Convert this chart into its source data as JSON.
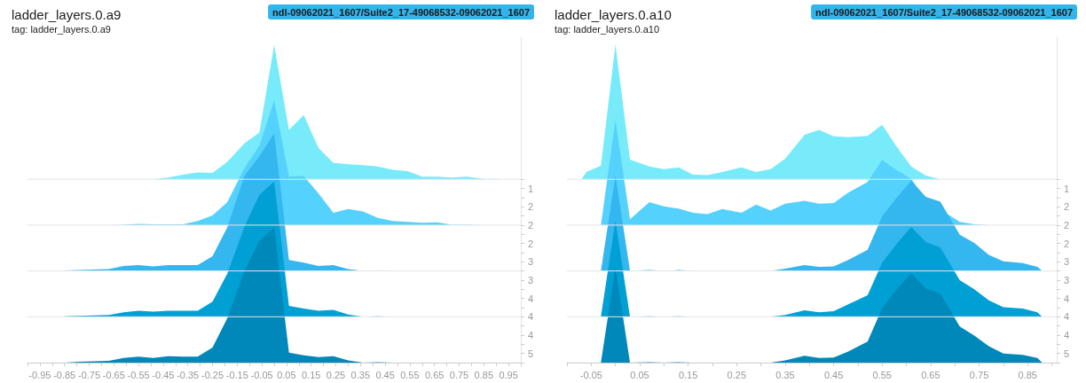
{
  "chart_data": [
    {
      "type": "area",
      "title": "ladder_layers.0.a9",
      "subtitle": "tag: ladder_layers.0.a9",
      "annotations": [
        "ndl-09062021_1607/Suite2_17-49068532-09062021_1607"
      ],
      "x": [
        -0.85,
        -0.79,
        -0.73,
        -0.67,
        -0.61,
        -0.55,
        -0.49,
        -0.43,
        -0.37,
        -0.31,
        -0.25,
        -0.19,
        -0.12,
        -0.06,
        0.0,
        0.06,
        0.12,
        0.18,
        0.24,
        0.3,
        0.36,
        0.42,
        0.48,
        0.54,
        0.6,
        0.66,
        0.72,
        0.78,
        0.85,
        0.91
      ],
      "xlim": [
        -1.0,
        1.0
      ],
      "xticks": [
        {
          "value": -1.0,
          "label": null
        },
        -0.95,
        {
          "value": -0.9,
          "label": null
        },
        -0.85,
        {
          "value": -0.8,
          "label": null
        },
        -0.75,
        {
          "value": -0.7,
          "label": null
        },
        -0.65,
        {
          "value": -0.6,
          "label": null
        },
        -0.55,
        {
          "value": -0.5,
          "label": null
        },
        -0.45,
        {
          "value": -0.4,
          "label": null
        },
        -0.35,
        {
          "value": -0.3,
          "label": null
        },
        -0.25,
        {
          "value": -0.2,
          "label": null
        },
        -0.15,
        {
          "value": -0.1,
          "label": null
        },
        -0.05,
        {
          "value": 0.0,
          "label": null
        },
        0.05,
        {
          "value": 0.1,
          "label": null
        },
        0.15,
        {
          "value": 0.2,
          "label": null
        },
        0.25,
        {
          "value": 0.3,
          "label": null
        },
        0.35,
        {
          "value": 0.4,
          "label": null
        },
        0.45,
        {
          "value": 0.5,
          "label": null
        },
        0.55,
        {
          "value": 0.6,
          "label": null
        },
        0.65,
        {
          "value": 0.7,
          "label": null
        },
        0.75,
        {
          "value": 0.8,
          "label": null
        },
        0.85,
        {
          "value": 0.9,
          "label": null
        },
        0.95,
        {
          "value": 1.0,
          "label": null
        }
      ],
      "y2lim": [
        5,
        -2.1
      ],
      "y2ticks": [
        {
          "value": 1.0,
          "label": null
        },
        {
          "value": 1.2,
          "label": "1"
        },
        {
          "value": 1.4,
          "label": null
        },
        {
          "value": 1.6,
          "label": "2"
        },
        {
          "value": 1.8,
          "label": null
        },
        {
          "value": 2.0,
          "label": "2"
        },
        {
          "value": 2.2,
          "label": null
        },
        {
          "value": 2.4,
          "label": "2"
        },
        {
          "value": 2.6,
          "label": null
        },
        {
          "value": 2.8,
          "label": "3"
        },
        {
          "value": 3.0,
          "label": null
        },
        {
          "value": 3.2,
          "label": "3"
        },
        {
          "value": 3.4,
          "label": null
        },
        {
          "value": 3.6,
          "label": "4"
        },
        {
          "value": 3.8,
          "label": null
        },
        {
          "value": 4.0,
          "label": "4"
        },
        {
          "value": 4.2,
          "label": null
        },
        {
          "value": 4.4,
          "label": "4"
        },
        {
          "value": 4.6,
          "label": null
        },
        {
          "value": 4.8,
          "label": "5"
        },
        {
          "value": 5.0,
          "label": null
        }
      ],
      "series": [
        {
          "axis": "y2",
          "color": "#78ebfa",
          "values": [
            1,
            1,
            1,
            1,
            1,
            1,
            1,
            0.96,
            0.9,
            0.85,
            0.86,
            0.62,
            0.21,
            -0.02,
            -1.93,
            -0.08,
            -0.4,
            0.32,
            0.64,
            0.67,
            0.69,
            0.72,
            0.79,
            0.82,
            0.94,
            0.94,
            0.96,
            0.94,
            0.99,
            0.99
          ]
        },
        {
          "axis": "y2",
          "color": "#55d1fd",
          "values": [
            2,
            2,
            2,
            2,
            1.99,
            1.97,
            1.98,
            1.98,
            1.98,
            1.91,
            1.79,
            1.5,
            0.75,
            0.27,
            -0.72,
            0.94,
            0.93,
            1.31,
            1.73,
            1.65,
            1.7,
            1.84,
            1.91,
            1.93,
            1.95,
            1.94,
            1.99,
            1.99,
            2,
            2
          ]
        },
        {
          "axis": "y2",
          "color": "#34b6ee",
          "values": [
            2.99,
            2.98,
            2.97,
            2.96,
            2.89,
            2.87,
            2.9,
            2.87,
            2.87,
            2.87,
            2.68,
            2.05,
            0.92,
            0.5,
            0,
            2.76,
            2.82,
            2.89,
            2.87,
            2.96,
            3,
            2.99,
            3,
            3,
            3,
            3,
            3,
            3,
            3,
            3
          ]
        },
        {
          "axis": "y2",
          "color": "#00a0d5",
          "values": [
            3.99,
            3.98,
            3.97,
            3.96,
            3.9,
            3.87,
            3.89,
            3.87,
            3.87,
            3.87,
            3.67,
            3.06,
            2.03,
            1.34,
            1.05,
            3.76,
            3.82,
            3.87,
            3.85,
            3.95,
            4,
            3.99,
            4,
            4,
            4,
            4,
            4,
            4,
            4,
            4
          ]
        },
        {
          "axis": "y2",
          "color": "#0088ba",
          "values": [
            5,
            4.98,
            4.97,
            4.96,
            4.9,
            4.87,
            4.9,
            4.86,
            4.87,
            4.87,
            4.67,
            4.03,
            3,
            2.35,
            2.05,
            4.78,
            4.84,
            4.88,
            4.86,
            4.95,
            5,
            4.99,
            5,
            5,
            5,
            5,
            5,
            5,
            5,
            5
          ]
        }
      ],
      "ref_lines": [
        {
          "axis": "y2",
          "value": 1
        },
        {
          "axis": "y2",
          "value": 2
        },
        {
          "axis": "y2",
          "value": 3
        },
        {
          "axis": "y2",
          "value": 4
        }
      ]
    },
    {
      "type": "area",
      "title": "ladder_layers.0.a10",
      "subtitle": "tag: ladder_layers.0.a10",
      "annotations": [
        "ndl-09062021_1607/Suite2_17-49068532-09062021_1607"
      ],
      "xlim": [
        -0.1,
        0.91
      ],
      "xticks": [
        {
          "value": -0.1,
          "label": null
        },
        -0.05,
        {
          "value": 0.0,
          "label": null
        },
        0.05,
        {
          "value": 0.1,
          "label": null
        },
        0.15,
        {
          "value": 0.2,
          "label": null
        },
        0.25,
        {
          "value": 0.3,
          "label": null
        },
        0.35,
        {
          "value": 0.4,
          "label": null
        },
        0.45,
        {
          "value": 0.5,
          "label": null
        },
        0.55,
        {
          "value": 0.6,
          "label": null
        },
        0.65,
        {
          "value": 0.7,
          "label": null
        },
        0.75,
        {
          "value": 0.8,
          "label": null
        },
        0.85,
        {
          "value": 0.9,
          "label": null
        }
      ],
      "y2lim": [
        5,
        -2.1
      ],
      "y2ticks": [
        {
          "value": 1.0,
          "label": null
        },
        {
          "value": 1.2,
          "label": "1"
        },
        {
          "value": 1.4,
          "label": null
        },
        {
          "value": 1.6,
          "label": "2"
        },
        {
          "value": 1.8,
          "label": null
        },
        {
          "value": 2.0,
          "label": "2"
        },
        {
          "value": 2.2,
          "label": null
        },
        {
          "value": 2.4,
          "label": "2"
        },
        {
          "value": 2.6,
          "label": null
        },
        {
          "value": 2.8,
          "label": "3"
        },
        {
          "value": 3.0,
          "label": null
        },
        {
          "value": 3.2,
          "label": "3"
        },
        {
          "value": 3.4,
          "label": null
        },
        {
          "value": 3.6,
          "label": "4"
        },
        {
          "value": 3.8,
          "label": null
        },
        {
          "value": 4.0,
          "label": "4"
        },
        {
          "value": 4.2,
          "label": null
        },
        {
          "value": 4.4,
          "label": "4"
        },
        {
          "value": 4.6,
          "label": null
        },
        {
          "value": 4.8,
          "label": "5"
        },
        {
          "value": 5.0,
          "label": null
        }
      ],
      "ref_lines": [
        {
          "axis": "y2",
          "value": 1
        },
        {
          "axis": "y2",
          "value": 2
        },
        {
          "axis": "y2",
          "value": 3
        },
        {
          "axis": "y2",
          "value": 4
        }
      ],
      "series": [
        {
          "axis": "y2",
          "color": "#78ebfa",
          "x": [
            -0.07,
            -0.06,
            -0.03,
            0.0,
            0.03,
            0.07,
            0.1,
            0.13,
            0.16,
            0.19,
            0.22,
            0.26,
            0.29,
            0.32,
            0.35,
            0.39,
            0.42,
            0.45,
            0.48,
            0.52,
            0.55,
            0.58,
            0.61,
            0.64,
            0.67,
            0.71,
            0.74,
            0.77,
            0.8,
            0.84,
            0.87
          ],
          "values": [
            1,
            0.84,
            0.7,
            -1.94,
            0.57,
            0.72,
            0.78,
            0.74,
            0.9,
            0.91,
            0.84,
            0.74,
            0.84,
            0.78,
            0.55,
            0.03,
            -0.08,
            0.06,
            0.08,
            0.05,
            -0.19,
            0.29,
            0.72,
            0.92,
            1,
            1,
            1,
            1,
            1,
            1,
            1
          ]
        },
        {
          "axis": "y2",
          "color": "#55d1fd",
          "x": [
            -0.03,
            0.0,
            0.03,
            0.07,
            0.1,
            0.13,
            0.16,
            0.19,
            0.22,
            0.26,
            0.29,
            0.32,
            0.35,
            0.39,
            0.42,
            0.45,
            0.48,
            0.52,
            0.55,
            0.58,
            0.61,
            0.64,
            0.71,
            0.74,
            0.77,
            0.8,
            0.84,
            0.87
          ],
          "values": [
            2,
            -0.29,
            1.87,
            1.5,
            1.59,
            1.64,
            1.73,
            1.76,
            1.65,
            1.73,
            1.55,
            1.68,
            1.53,
            1.47,
            1.53,
            1.52,
            1.29,
            1.06,
            0.58,
            0.8,
            0.99,
            1.45,
            1.93,
            1.98,
            2,
            2,
            2,
            2
          ]
        },
        {
          "axis": "y2",
          "color": "#34b6ee",
          "x": [
            -0.03,
            0.0,
            0.03,
            0.07,
            0.1,
            0.13,
            0.16,
            0.19,
            0.22,
            0.26,
            0.29,
            0.32,
            0.35,
            0.39,
            0.42,
            0.45,
            0.48,
            0.52,
            0.55,
            0.58,
            0.61,
            0.64,
            0.67,
            0.71,
            0.74,
            0.77,
            0.8,
            0.84,
            0.87,
            0.88
          ],
          "values": [
            3,
            0.92,
            3,
            2.98,
            3,
            2.98,
            3,
            3,
            3,
            3,
            3,
            3,
            2.95,
            2.87,
            2.91,
            2.9,
            2.76,
            2.54,
            1.81,
            1.4,
            1.03,
            1.38,
            1.49,
            2.21,
            2.39,
            2.65,
            2.79,
            2.83,
            2.91,
            3
          ]
        },
        {
          "axis": "y2",
          "color": "#00a0d5",
          "x": [
            -0.03,
            0.0,
            0.03,
            0.07,
            0.1,
            0.13,
            0.16,
            0.19,
            0.22,
            0.26,
            0.29,
            0.32,
            0.35,
            0.39,
            0.42,
            0.45,
            0.48,
            0.52,
            0.55,
            0.58,
            0.61,
            0.64,
            0.67,
            0.71,
            0.74,
            0.77,
            0.8,
            0.84,
            0.87,
            0.88
          ],
          "values": [
            4,
            1.91,
            4,
            3.99,
            4,
            3.99,
            4,
            4,
            4,
            4,
            4,
            4,
            3.96,
            3.86,
            3.9,
            3.88,
            3.73,
            3.53,
            2.82,
            2.41,
            2.04,
            2.37,
            2.49,
            3.2,
            3.4,
            3.64,
            3.79,
            3.82,
            3.9,
            4
          ]
        },
        {
          "axis": "y2",
          "color": "#0088ba",
          "x": [
            -0.03,
            0.0,
            0.03,
            0.07,
            0.1,
            0.13,
            0.16,
            0.19,
            0.22,
            0.26,
            0.29,
            0.32,
            0.35,
            0.39,
            0.42,
            0.45,
            0.48,
            0.52,
            0.55,
            0.58,
            0.61,
            0.64,
            0.67,
            0.71,
            0.74,
            0.77,
            0.8,
            0.84,
            0.87,
            0.88
          ],
          "values": [
            5,
            2.92,
            5,
            4.99,
            5,
            4.99,
            5,
            5,
            5,
            5,
            5,
            5,
            4.95,
            4.85,
            4.9,
            4.89,
            4.76,
            4.54,
            3.81,
            3.4,
            3.05,
            3.38,
            3.49,
            4.21,
            4.41,
            4.64,
            4.8,
            4.83,
            4.9,
            5
          ]
        }
      ]
    }
  ]
}
